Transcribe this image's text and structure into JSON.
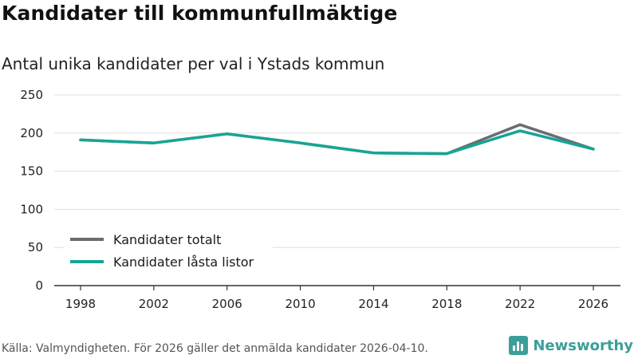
{
  "title": "Kandidater till kommunfullmäktige",
  "subtitle": "Antal unika kandidater per val i Ystads kommun",
  "footer": "Källa: Valmyndigheten. För 2026 gäller det anmälda kandidater 2026-04-10.",
  "brand": {
    "name": "Newsworthy",
    "logo_icon": "bar-chart-icon",
    "color": "#3d9e98"
  },
  "chart_data": {
    "type": "line",
    "x": [
      1998,
      2002,
      2006,
      2010,
      2014,
      2018,
      2022,
      2026
    ],
    "series": [
      {
        "name": "Kandidater totalt",
        "color": "#6b6b72",
        "values": [
          191,
          187,
          199,
          187,
          174,
          173,
          211,
          179
        ]
      },
      {
        "name": "Kandidater låsta listor",
        "color": "#16a596",
        "values": [
          191,
          187,
          199,
          187,
          174,
          173,
          203,
          179
        ]
      }
    ],
    "ylim": [
      0,
      250
    ],
    "yticks": [
      0,
      50,
      100,
      150,
      200,
      250
    ],
    "xticks": [
      "1998",
      "2002",
      "2006",
      "2010",
      "2014",
      "2018",
      "2022",
      "2026"
    ],
    "xlabel": "",
    "ylabel": "",
    "grid": true,
    "legend_position": "bottom-left"
  }
}
